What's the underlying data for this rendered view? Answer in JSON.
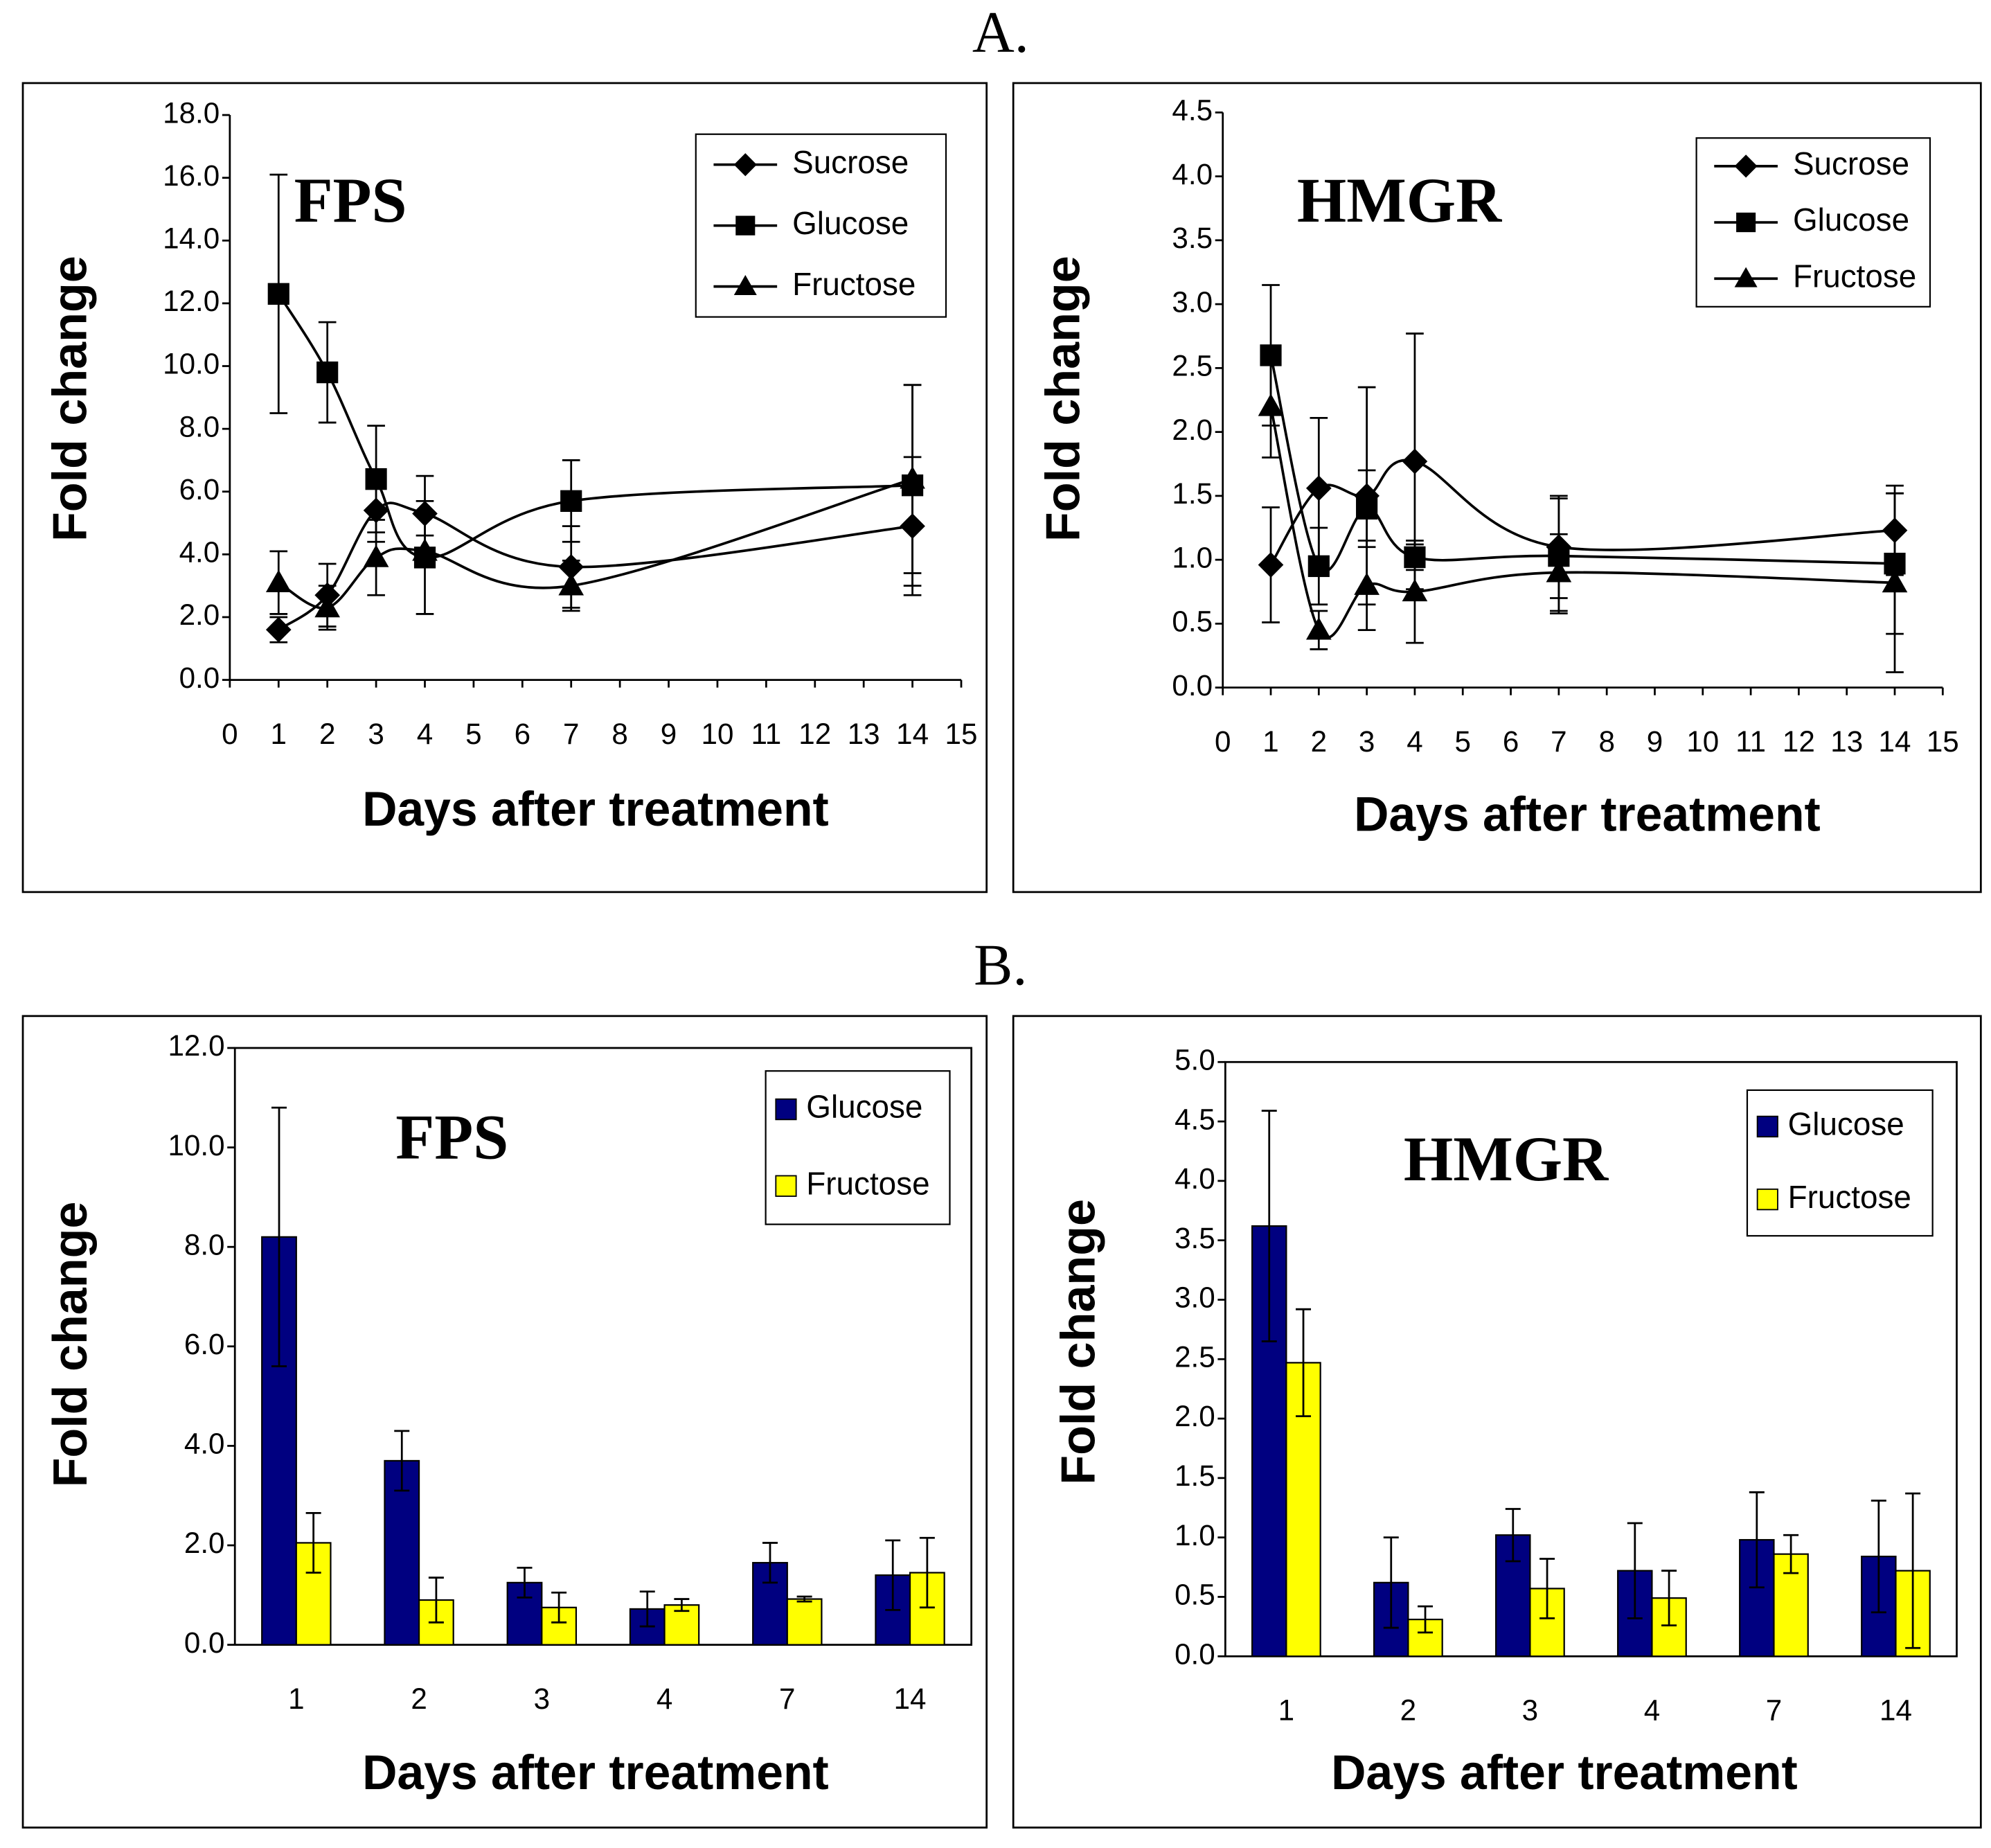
{
  "panel_labels": [
    "A.",
    "B."
  ],
  "chart_data": [
    {
      "type": "line",
      "title": "FPS",
      "x_label": "Days after treatment",
      "y_label": "Fold change",
      "x": [
        1,
        2,
        3,
        4,
        7,
        14
      ],
      "xlim": [
        0,
        15
      ],
      "xticks": [
        0,
        1,
        2,
        3,
        4,
        5,
        6,
        7,
        8,
        9,
        10,
        11,
        12,
        13,
        14,
        15
      ],
      "ylim": [
        0,
        18
      ],
      "yticks": [
        {
          "value": 0,
          "label": "0.0"
        },
        {
          "value": 2,
          "label": "2.0"
        },
        {
          "value": 4,
          "label": "4.0"
        },
        {
          "value": 6,
          "label": "6.0"
        },
        {
          "value": 8,
          "label": "8.0"
        },
        {
          "value": 10,
          "label": "10.0"
        },
        {
          "value": 12,
          "label": "12.0"
        },
        {
          "value": 14,
          "label": "14.0"
        },
        {
          "value": 16,
          "label": "16.0"
        },
        {
          "value": 18,
          "label": "18.0"
        }
      ],
      "legend": "upper right",
      "series": [
        {
          "name": "Sucrose",
          "color": "#000000",
          "marker": "diamond",
          "values": [
            1.6,
            2.7,
            5.4,
            5.3,
            3.6,
            4.9
          ],
          "errors": [
            0.4,
            1.0,
            1.0,
            1.2,
            1.3,
            2.2
          ]
        },
        {
          "name": "Glucose",
          "color": "#000000",
          "marker": "square",
          "values": [
            12.3,
            9.8,
            6.4,
            3.9,
            5.7,
            6.2
          ],
          "errors": [
            3.8,
            1.6,
            1.7,
            1.8,
            1.3,
            3.2
          ]
        },
        {
          "name": "Fructose",
          "color": "#000000",
          "marker": "triangle",
          "values": [
            3.1,
            2.3,
            3.9,
            4.1,
            3.0,
            6.4
          ],
          "errors": [
            1.0,
            0.7,
            1.2,
            0.5,
            0.8,
            3.0
          ]
        }
      ]
    },
    {
      "type": "line",
      "title": "HMGR",
      "x_label": "Days after treatment",
      "y_label": "Fold change",
      "x": [
        1,
        2,
        3,
        4,
        7,
        14
      ],
      "xlim": [
        0,
        15
      ],
      "xticks": [
        0,
        1,
        2,
        3,
        4,
        5,
        6,
        7,
        8,
        9,
        10,
        11,
        12,
        13,
        14,
        15
      ],
      "ylim": [
        0,
        4.5
      ],
      "yticks": [
        {
          "value": 0,
          "label": "0.0"
        },
        0.5,
        {
          "value": 1,
          "label": "1.0"
        },
        1.5,
        {
          "value": 2,
          "label": "2.0"
        },
        2.5,
        {
          "value": 3,
          "label": "3.0"
        },
        3.5,
        {
          "value": 4,
          "label": "4.0"
        },
        4.5
      ],
      "legend": "upper right",
      "series": [
        {
          "name": "Sucrose",
          "color": "#000000",
          "marker": "diamond",
          "values": [
            0.96,
            1.56,
            1.5,
            1.77,
            1.1,
            1.23
          ],
          "errors": [
            0.45,
            0.55,
            0.85,
            1.0,
            0.4,
            0.35
          ]
        },
        {
          "name": "Glucose",
          "color": "#000000",
          "marker": "square",
          "values": [
            2.6,
            0.95,
            1.4,
            1.02,
            1.03,
            0.97
          ],
          "errors": [
            0.55,
            0.3,
            0.3,
            0.1,
            0.45,
            0.55
          ]
        },
        {
          "name": "Fructose",
          "color": "#000000",
          "marker": "triangle",
          "values": [
            2.2,
            0.45,
            0.8,
            0.75,
            0.9,
            0.82
          ],
          "errors": [
            0.4,
            0.15,
            0.35,
            0.4,
            0.3,
            0.7
          ]
        }
      ]
    },
    {
      "type": "bar",
      "title": "FPS",
      "x_label": "Days after treatment",
      "y_label": "Fold change",
      "categories": [
        "1",
        "2",
        "3",
        "4",
        "7",
        "14"
      ],
      "ylim": [
        0,
        12
      ],
      "yticks": [
        {
          "value": 0,
          "label": "0.0"
        },
        {
          "value": 2,
          "label": "2.0"
        },
        {
          "value": 4,
          "label": "4.0"
        },
        {
          "value": 6,
          "label": "6.0"
        },
        {
          "value": 8,
          "label": "8.0"
        },
        {
          "value": 10,
          "label": "10.0"
        },
        {
          "value": 12,
          "label": "12.0"
        }
      ],
      "legend": "upper right",
      "series": [
        {
          "name": "Glucose",
          "color": "#000080",
          "values": [
            8.2,
            3.7,
            1.25,
            0.72,
            1.65,
            1.4
          ],
          "errors": [
            2.6,
            0.6,
            0.3,
            0.35,
            0.4,
            0.7
          ]
        },
        {
          "name": "Fructose",
          "color": "#ffff00",
          "values": [
            2.05,
            0.9,
            0.75,
            0.8,
            0.92,
            1.45
          ],
          "errors": [
            0.6,
            0.45,
            0.3,
            0.12,
            0.05,
            0.7
          ]
        }
      ]
    },
    {
      "type": "bar",
      "title": "HMGR",
      "x_label": "Days after treatment",
      "y_label": "Fold change",
      "categories": [
        "1",
        "2",
        "3",
        "4",
        "7",
        "14"
      ],
      "ylim": [
        0,
        5
      ],
      "yticks": [
        {
          "value": 0,
          "label": "0.0"
        },
        0.5,
        {
          "value": 1,
          "label": "1.0"
        },
        1.5,
        {
          "value": 2,
          "label": "2.0"
        },
        2.5,
        {
          "value": 3,
          "label": "3.0"
        },
        3.5,
        {
          "value": 4,
          "label": "4.0"
        },
        4.5,
        {
          "value": 5,
          "label": "5.0"
        }
      ],
      "legend": "upper right",
      "series": [
        {
          "name": "Glucose",
          "color": "#000080",
          "values": [
            3.62,
            0.62,
            1.02,
            0.72,
            0.98,
            0.84
          ],
          "errors": [
            0.97,
            0.38,
            0.22,
            0.4,
            0.4,
            0.47
          ]
        },
        {
          "name": "Fructose",
          "color": "#ffff00",
          "values": [
            2.47,
            0.31,
            0.57,
            0.49,
            0.86,
            0.72
          ],
          "errors": [
            0.45,
            0.11,
            0.25,
            0.23,
            0.16,
            0.65
          ]
        }
      ]
    }
  ]
}
